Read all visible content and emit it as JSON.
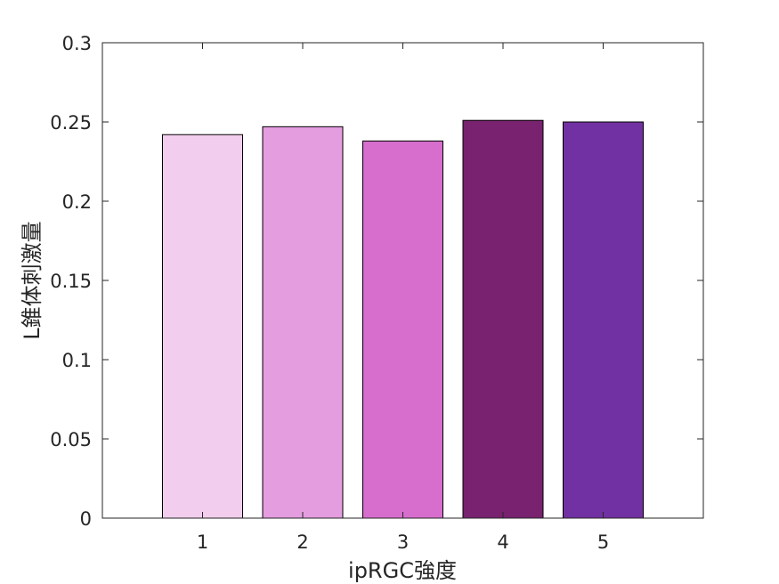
{
  "chart_data": {
    "type": "bar",
    "categories": [
      "1",
      "2",
      "3",
      "4",
      "5"
    ],
    "values": [
      0.242,
      0.247,
      0.238,
      0.251,
      0.25
    ],
    "colors": [
      "#f2cdee",
      "#e49ddf",
      "#d76dcc",
      "#782270",
      "#7131a2"
    ],
    "xlabel": "ipRGC強度",
    "ylabel": "L錐体刺激量",
    "xlim": [
      0,
      6
    ],
    "ylim": [
      0,
      0.3
    ],
    "yticks": [
      0,
      0.05,
      0.1,
      0.15,
      0.2,
      0.25,
      0.3
    ],
    "ytick_labels": [
      "0",
      "0.05",
      "0.1",
      "0.15",
      "0.2",
      "0.25",
      "0.3"
    ],
    "grid": false,
    "box": true
  }
}
